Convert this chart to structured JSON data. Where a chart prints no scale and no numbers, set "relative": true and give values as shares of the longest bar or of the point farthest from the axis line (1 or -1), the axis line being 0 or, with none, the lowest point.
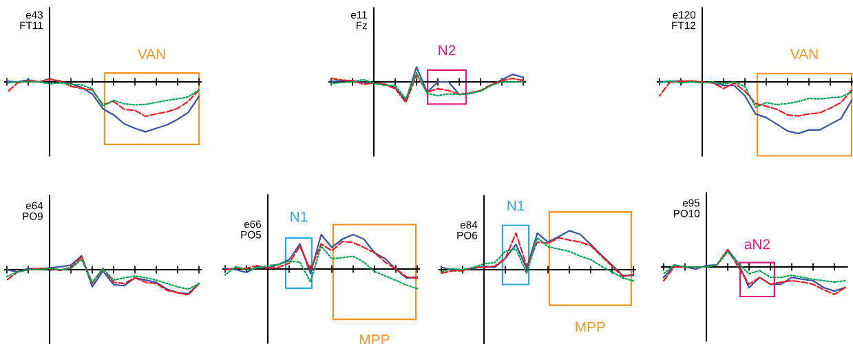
{
  "chart_data": [
    {
      "type": "line",
      "relative": true,
      "title": "e43",
      "subtitle": "FT11",
      "categories": [
        null,
        null,
        null,
        null,
        null,
        null,
        null,
        null,
        null,
        null,
        null,
        null,
        null,
        null,
        null,
        null,
        null,
        null,
        null
      ],
      "annotations": [
        "VAN"
      ],
      "series": [
        {
          "color": "#3953a4",
          "line_style": "solid",
          "values": [
            0.01,
            0,
            0.04,
            0,
            0.06,
            0,
            -0.04,
            -0.11,
            -0.24,
            -0.54,
            -0.66,
            -0.84,
            -0.93,
            -1,
            -0.93,
            -0.86,
            -0.75,
            -0.61,
            -0.29
          ]
        },
        {
          "color": "#ed1c24",
          "line_style": "dashed",
          "values": [
            -0.21,
            -0.02,
            0.02,
            0,
            0.05,
            0.02,
            -0.09,
            -0.13,
            -0.16,
            -0.46,
            -0.39,
            -0.55,
            -0.57,
            -0.69,
            -0.64,
            -0.6,
            -0.53,
            -0.39,
            -0.16
          ]
        },
        {
          "color": "#00a651",
          "line_style": "dotted",
          "values": [
            -0.02,
            0,
            0,
            0,
            -0.04,
            -0.02,
            -0.05,
            -0.06,
            -0.14,
            -0.48,
            -0.37,
            -0.44,
            -0.46,
            -0.45,
            -0.41,
            -0.37,
            -0.34,
            -0.3,
            -0.16
          ]
        }
      ]
    },
    {
      "type": "line",
      "relative": true,
      "title": "e11",
      "subtitle": "Fz",
      "categories": [
        null,
        null,
        null,
        null,
        null,
        null,
        null,
        null,
        null,
        null,
        null,
        null,
        null,
        null,
        null,
        null,
        null,
        null,
        null
      ],
      "annotations": [
        "N2"
      ],
      "series": [
        {
          "color": "#3953a4",
          "line_style": "solid",
          "values": [
            0.02,
            0.06,
            0.06,
            -0.03,
            -0.06,
            -0.11,
            -0.28,
            -0.92,
            0.72,
            -0.5,
            0,
            0,
            -0.61,
            -0.56,
            -0.44,
            -0.17,
            0.11,
            0.36,
            0.22
          ]
        },
        {
          "color": "#ed1c24",
          "line_style": "dashed",
          "values": [
            0.17,
            0.09,
            0.06,
            -0.11,
            -0.06,
            -0.11,
            -0.33,
            -1,
            0.33,
            -0.5,
            -0.33,
            -0.42,
            -0.61,
            -0.53,
            -0.42,
            -0.13,
            0.06,
            0.17,
            0.06
          ]
        },
        {
          "color": "#00a651",
          "line_style": "dotted",
          "values": [
            -0.09,
            -0.03,
            0,
            0.11,
            -0.06,
            -0.17,
            -0.17,
            -0.83,
            0.44,
            -0.56,
            -0.67,
            -0.58,
            -0.61,
            -0.56,
            -0.44,
            -0.17,
            0,
            0,
            0
          ]
        }
      ]
    },
    {
      "type": "line",
      "relative": true,
      "title": "e120",
      "subtitle": "FT12",
      "categories": [
        null,
        null,
        null,
        null,
        null,
        null,
        null,
        null,
        null,
        null,
        null,
        null,
        null,
        null,
        null,
        null,
        null,
        null,
        null
      ],
      "annotations": [
        "VAN"
      ],
      "series": [
        {
          "color": "#3953a4",
          "line_style": "solid",
          "values": [
            0,
            0.01,
            0.02,
            0,
            -0.01,
            -0.02,
            -0.07,
            -0.07,
            -0.27,
            -0.62,
            -0.69,
            -0.82,
            -0.95,
            -1,
            -0.93,
            -0.93,
            -0.82,
            -0.71,
            -0.36
          ]
        },
        {
          "color": "#ed1c24",
          "line_style": "dashed",
          "values": [
            -0.27,
            0,
            0.01,
            0.02,
            0,
            -0.02,
            -0.13,
            -0.02,
            -0.18,
            -0.42,
            -0.47,
            -0.53,
            -0.64,
            -0.66,
            -0.62,
            -0.6,
            -0.51,
            -0.4,
            -0.16
          ]
        },
        {
          "color": "#00a651",
          "line_style": "dotted",
          "values": [
            -0.02,
            0.02,
            -0.02,
            0,
            -0.02,
            0,
            -0.04,
            0,
            -0.09,
            -0.49,
            -0.4,
            -0.44,
            -0.42,
            -0.38,
            -0.32,
            -0.33,
            -0.31,
            -0.29,
            -0.2
          ]
        }
      ]
    },
    {
      "type": "line",
      "relative": true,
      "title": "e64",
      "subtitle": "PO9",
      "categories": [
        null,
        null,
        null,
        null,
        null,
        null,
        null,
        null,
        null,
        null,
        null,
        null,
        null,
        null,
        null,
        null,
        null,
        null,
        null
      ],
      "series": [
        {
          "color": "#3953a4",
          "line_style": "solid",
          "values": [
            0,
            -0.09,
            0.05,
            0.03,
            0.07,
            0.11,
            0.18,
            0.55,
            -0.68,
            -0.05,
            -0.59,
            -0.64,
            -0.32,
            -0.41,
            -0.5,
            -0.77,
            -0.91,
            -0.95,
            -0.55
          ]
        },
        {
          "color": "#ed1c24",
          "line_style": "dashed",
          "values": [
            -0.41,
            -0.09,
            0,
            0.05,
            0.05,
            -0.03,
            0.09,
            0.5,
            -0.55,
            0.05,
            -0.5,
            -0.55,
            -0.32,
            -0.5,
            -0.55,
            -0.82,
            -0.91,
            -1,
            -0.55
          ]
        },
        {
          "color": "#00a651",
          "line_style": "dotted",
          "values": [
            -0.27,
            -0.09,
            0,
            0,
            0.05,
            0,
            0.05,
            0.41,
            -0.5,
            0.05,
            -0.41,
            -0.32,
            -0.25,
            -0.32,
            -0.41,
            -0.55,
            -0.68,
            -0.77,
            -0.55
          ]
        }
      ]
    },
    {
      "type": "line",
      "relative": true,
      "title": "e66",
      "subtitle": "PO5",
      "categories": [
        null,
        null,
        null,
        null,
        null,
        null,
        null,
        null,
        null,
        null,
        null,
        null,
        null,
        null,
        null,
        null,
        null,
        null,
        null
      ],
      "annotations": [
        "N1",
        "MPP"
      ],
      "series": [
        {
          "color": "#3953a4",
          "line_style": "solid",
          "values": [
            0.02,
            -0.02,
            -0.1,
            0.07,
            0.03,
            0.13,
            0.27,
            0.73,
            -0.13,
            1,
            0.63,
            0.87,
            1,
            0.87,
            0.47,
            0.3,
            0,
            -0.27,
            -0.23
          ]
        },
        {
          "color": "#ed1c24",
          "line_style": "dashed",
          "values": [
            -0.03,
            0.03,
            0.02,
            0.1,
            0.02,
            0.05,
            0.17,
            0.67,
            -0.03,
            0.73,
            0.53,
            0.8,
            0.77,
            0.63,
            0.47,
            0.2,
            0,
            -0.23,
            -0.27
          ]
        },
        {
          "color": "#00a651",
          "line_style": "dotted",
          "values": [
            -0.17,
            0.07,
            -0.03,
            0.03,
            0.1,
            0.13,
            0.23,
            0.2,
            -0.37,
            0.67,
            0.3,
            0.33,
            0.37,
            0.2,
            -0.07,
            -0.2,
            -0.33,
            -0.47,
            -0.57
          ]
        }
      ]
    },
    {
      "type": "line",
      "relative": true,
      "title": "e84",
      "subtitle": "PO6",
      "categories": [
        null,
        null,
        null,
        null,
        null,
        null,
        null,
        null,
        null,
        null,
        null,
        null,
        null,
        null,
        null,
        null,
        null,
        null,
        null
      ],
      "annotations": [
        "N1",
        "MPP"
      ],
      "series": [
        {
          "color": "#3953a4",
          "line_style": "solid",
          "values": [
            0.06,
            0,
            0,
            0.03,
            0.09,
            0.06,
            0.29,
            0.65,
            0.03,
            0.94,
            0.71,
            0.85,
            1,
            0.91,
            0.65,
            0.38,
            0.12,
            -0.15,
            -0.15
          ]
        },
        {
          "color": "#ed1c24",
          "line_style": "dashed",
          "values": [
            -0.09,
            -0.03,
            -0.03,
            0.06,
            0.06,
            0.09,
            0.29,
            0.94,
            0.09,
            0.71,
            0.68,
            0.82,
            0.76,
            0.71,
            0.62,
            0.35,
            0.09,
            -0.18,
            -0.12
          ]
        },
        {
          "color": "#00a651",
          "line_style": "dotted",
          "values": [
            -0.06,
            0.03,
            0,
            0.06,
            0.15,
            0.18,
            0.47,
            0.53,
            -0.09,
            0.82,
            0.59,
            0.53,
            0.47,
            0.35,
            0.26,
            0.09,
            -0.06,
            -0.21,
            -0.29
          ]
        }
      ]
    },
    {
      "type": "line",
      "relative": true,
      "title": "e95",
      "subtitle": "PO10",
      "categories": [
        null,
        null,
        null,
        null,
        null,
        null,
        null,
        null,
        null,
        null,
        null,
        null,
        null,
        null,
        null,
        null,
        null,
        null
      ],
      "annotations": [
        "aN2"
      ],
      "series": [
        {
          "color": "#3953a4",
          "line_style": "solid",
          "values": [
            -0.38,
            0.05,
            0,
            -0.08,
            0.05,
            0.08,
            0.63,
            0.13,
            -0.75,
            -0.38,
            -0.63,
            -0.63,
            -0.38,
            -0.45,
            -0.5,
            -0.75,
            -0.88,
            -0.75
          ]
        },
        {
          "color": "#ed1c24",
          "line_style": "dashed",
          "values": [
            -0.5,
            0,
            0,
            0,
            0,
            0.08,
            0.63,
            0,
            -0.63,
            -0.38,
            -0.63,
            -0.55,
            -0.5,
            -0.55,
            -0.63,
            -0.83,
            -1,
            -0.75
          ]
        },
        {
          "color": "#00a651",
          "line_style": "dotted",
          "values": [
            -0.25,
            0.08,
            0,
            0,
            0,
            0.08,
            0.55,
            0.13,
            -0.25,
            -0.13,
            -0.38,
            -0.38,
            -0.3,
            -0.38,
            -0.45,
            -0.5,
            -0.55,
            -0.5
          ]
        }
      ]
    }
  ]
}
